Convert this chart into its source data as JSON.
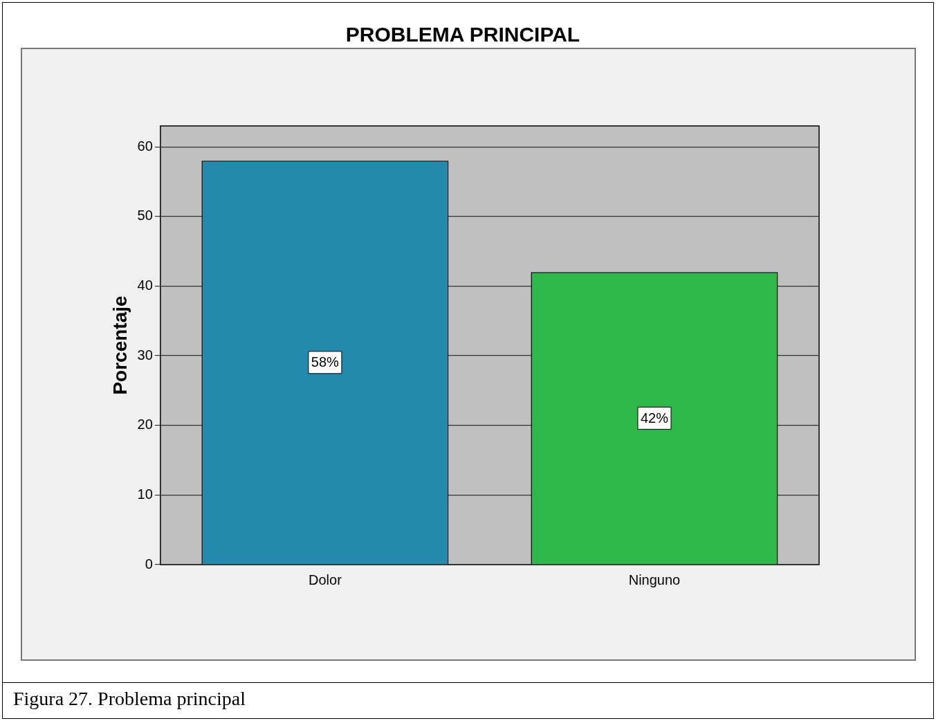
{
  "chart_data": {
    "type": "bar",
    "title": "PROBLEMA PRINCIPAL",
    "ylabel": "Porcentaje",
    "categories": [
      "Dolor",
      "Ninguno"
    ],
    "values": [
      58,
      42
    ],
    "colors": [
      "#238aad",
      "#2fb84a"
    ],
    "value_labels": [
      "58%",
      "42%"
    ],
    "ylim": [
      0,
      63
    ],
    "yticks": [
      0,
      10,
      20,
      30,
      40,
      50,
      60
    ],
    "grid": "y",
    "legend": false,
    "annotations": [
      "Figura 27. Problema principal"
    ]
  }
}
